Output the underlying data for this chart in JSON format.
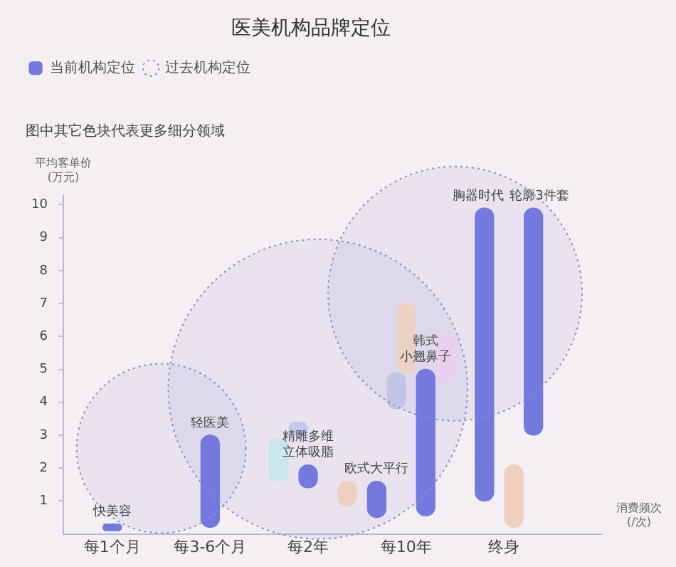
{
  "chart_data": {
    "type": "bar",
    "title": "医美机构品牌定位",
    "xlabel": "消费频次\n(/次)",
    "ylabel": "平均客单价\n(万元)",
    "categories": [
      null,
      null,
      null,
      null,
      null,
      "每1个月",
      null,
      null,
      null,
      null,
      null,
      null,
      null,
      null,
      null,
      "每3-6个月",
      null,
      null,
      null,
      null,
      null,
      null,
      null,
      null,
      null,
      "每2年",
      null,
      null,
      null,
      null,
      null,
      null,
      null,
      null,
      null,
      "每10年",
      null,
      null,
      null,
      null,
      null,
      null,
      null,
      null,
      null,
      "终身",
      null,
      null,
      null,
      null,
      null,
      null,
      null,
      null,
      null,
      null
    ],
    "ylim": [
      0,
      10.3
    ],
    "yticks": [
      1,
      2,
      3,
      4,
      5,
      6,
      7,
      8,
      9,
      10
    ],
    "legend": "top left",
    "series": [
      {
        "name": "当前机构定位",
        "color": "#7479de",
        "base": [
          null,
          null,
          null,
          null,
          null,
          0.1,
          null,
          null,
          null,
          null,
          null,
          null,
          null,
          null,
          null,
          0.2,
          null,
          null,
          null,
          null,
          null,
          null,
          null,
          null,
          null,
          1.4,
          null,
          null,
          null,
          null,
          null,
          null,
          0.5,
          null,
          null,
          null,
          null,
          0.55,
          null,
          null,
          null,
          null,
          null,
          1.0,
          null,
          null,
          null,
          null,
          3.0,
          null,
          null,
          null,
          null,
          null,
          null,
          null
        ],
        "values": [
          null,
          null,
          null,
          null,
          null,
          0.2,
          null,
          null,
          null,
          null,
          null,
          null,
          null,
          null,
          null,
          2.8,
          null,
          null,
          null,
          null,
          null,
          null,
          null,
          null,
          null,
          0.7,
          null,
          null,
          null,
          null,
          null,
          null,
          1.1,
          null,
          null,
          null,
          null,
          4.45,
          null,
          null,
          null,
          null,
          null,
          8.9,
          null,
          null,
          null,
          null,
          6.9,
          null,
          null,
          null,
          null,
          null,
          null,
          null
        ],
        "value_labels": [
          null,
          null,
          null,
          null,
          null,
          "快美容",
          null,
          null,
          null,
          null,
          null,
          null,
          null,
          null,
          null,
          "轻医美",
          null,
          null,
          null,
          null,
          null,
          null,
          null,
          null,
          null,
          "精雕多维立体吸脂",
          null,
          null,
          null,
          null,
          null,
          null,
          "欧式大平行",
          null,
          null,
          null,
          null,
          "韩式小翘鼻子",
          null,
          null,
          null,
          null,
          null,
          "胸器时代",
          null,
          null,
          null,
          null,
          "轮廓3件套",
          null,
          null,
          null,
          null,
          null,
          null,
          null
        ]
      },
      {
        "name": "过去机构定位",
        "type": "bubble",
        "color": "#8a8ccf",
        "line_style": "dotted",
        "values": [
          null,
          null,
          null,
          null,
          null,
          null,
          null,
          null,
          null,
          null,
          2.6,
          null,
          null,
          null,
          null,
          null,
          null,
          null,
          null,
          null,
          null,
          null,
          null,
          null,
          null,
          null,
          4.4,
          null,
          null,
          null,
          null,
          null,
          null,
          null,
          null,
          null,
          null,
          null,
          null,
          null,
          7.3,
          null,
          null,
          null,
          null,
          null,
          null,
          null,
          null,
          null,
          null,
          null,
          null,
          null,
          null,
          null
        ],
        "sizes": [
          null,
          null,
          null,
          null,
          null,
          null,
          null,
          null,
          null,
          null,
          0.32,
          null,
          null,
          null,
          null,
          null,
          null,
          null,
          null,
          null,
          null,
          null,
          null,
          null,
          null,
          null,
          1,
          null,
          null,
          null,
          null,
          null,
          null,
          null,
          null,
          null,
          null,
          null,
          null,
          null,
          0.72,
          null,
          null,
          null,
          null,
          null,
          null,
          null,
          null,
          null,
          null,
          null,
          null,
          null,
          null,
          null
        ]
      },
      {
        "colors": [
          null,
          null,
          null,
          null,
          null,
          null,
          null,
          null,
          null,
          null,
          null,
          null,
          null,
          null,
          null,
          null,
          null,
          null,
          null,
          null,
          null,
          null,
          "#c9e6ea",
          null,
          "#c5c8ee",
          null,
          null,
          null,
          null,
          "#efd0c0",
          null,
          null,
          null,
          null,
          "#c2c6e4",
          "#ecd2c4",
          null,
          null,
          null,
          "#e9d0ee",
          null,
          null,
          null,
          null,
          null,
          null,
          "#efd0c0",
          null,
          null,
          null,
          null,
          null,
          null,
          null,
          null,
          null
        ],
        "base": [
          null,
          null,
          null,
          null,
          null,
          null,
          null,
          null,
          null,
          null,
          null,
          null,
          null,
          null,
          null,
          null,
          null,
          null,
          null,
          null,
          null,
          null,
          1.6,
          null,
          3.0,
          null,
          null,
          null,
          null,
          0.85,
          null,
          null,
          null,
          null,
          3.8,
          4.9,
          null,
          null,
          null,
          4.6,
          null,
          null,
          null,
          null,
          null,
          null,
          0.2,
          null,
          null,
          null,
          null,
          null,
          null,
          null,
          null,
          null
        ],
        "values": [
          null,
          null,
          null,
          null,
          null,
          null,
          null,
          null,
          null,
          null,
          null,
          null,
          null,
          null,
          null,
          null,
          null,
          null,
          null,
          null,
          null,
          null,
          1.3,
          null,
          0.4,
          null,
          null,
          null,
          null,
          0.75,
          null,
          null,
          null,
          null,
          1.1,
          2.1,
          null,
          null,
          null,
          1.5,
          null,
          null,
          null,
          null,
          null,
          null,
          1.9,
          null,
          null,
          null,
          null,
          null,
          null,
          null,
          null,
          null
        ]
      }
    ],
    "annotations": [
      "图中其它色块代表更多细分领域"
    ]
  }
}
